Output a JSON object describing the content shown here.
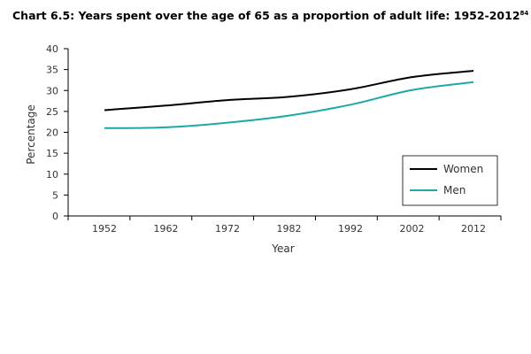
{
  "chart_data": {
    "type": "line",
    "title": "Chart 6.5: Years spent over the age of 65 as a proportion of adult life: 1952-2012",
    "title_footnote": "84",
    "xlabel": "Year",
    "ylabel": "Percentage",
    "categories": [
      "1952",
      "1962",
      "1972",
      "1982",
      "1992",
      "2002",
      "2012"
    ],
    "yticks": [
      "0",
      "5",
      "10",
      "15",
      "20",
      "25",
      "30",
      "35",
      "40"
    ],
    "ylim": [
      0,
      40
    ],
    "grid": false,
    "legend_position": "bottom-right",
    "series": [
      {
        "name": "Women",
        "color": "#000000",
        "values": [
          25.3,
          26.4,
          27.7,
          28.5,
          30.3,
          33.2,
          34.7
        ]
      },
      {
        "name": "Men",
        "color": "#1aa9a6",
        "values": [
          21.0,
          21.2,
          22.3,
          24.0,
          26.6,
          30.1,
          32.0
        ]
      }
    ]
  }
}
